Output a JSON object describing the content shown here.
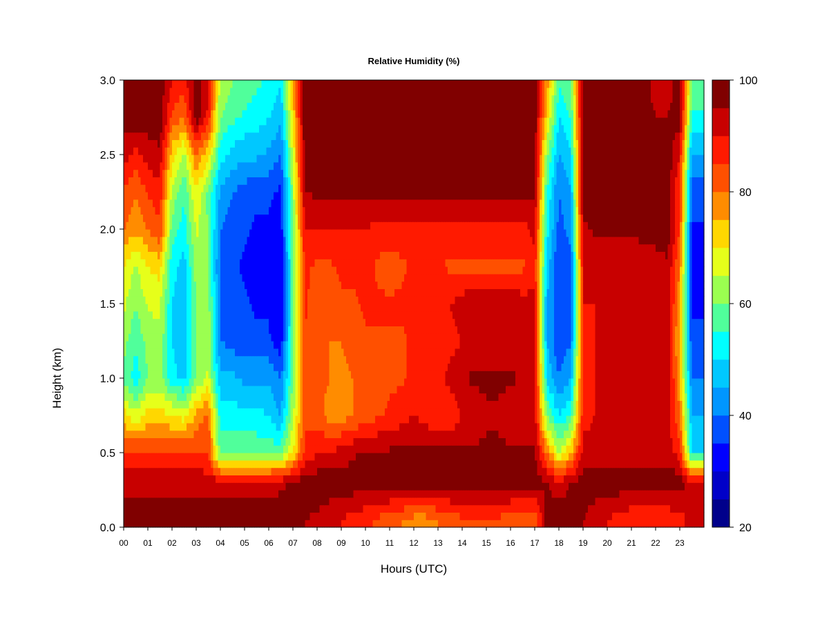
{
  "chart_data": {
    "type": "heatmap",
    "title": "Relative Humidity (%)",
    "xlabel": "Hours (UTC)",
    "ylabel": "Height (km)",
    "xlim": [
      0,
      24
    ],
    "ylim": [
      0,
      3
    ],
    "x_ticks": [
      0,
      1,
      2,
      3,
      4,
      5,
      6,
      7,
      8,
      9,
      10,
      11,
      12,
      13,
      14,
      15,
      16,
      17,
      18,
      19,
      20,
      21,
      22,
      23
    ],
    "x_tick_labels": [
      "00",
      "01",
      "02",
      "03",
      "04",
      "05",
      "06",
      "07",
      "08",
      "09",
      "10",
      "11",
      "12",
      "13",
      "14",
      "15",
      "16",
      "17",
      "18",
      "19",
      "20",
      "21",
      "22",
      "23"
    ],
    "y_ticks": [
      0.0,
      0.5,
      1.0,
      1.5,
      2.0,
      2.5,
      3.0
    ],
    "y_tick_labels": [
      "0.0",
      "0.5",
      "1.0",
      "1.5",
      "2.0",
      "2.5",
      "3.0"
    ],
    "colorbar": {
      "min": 20,
      "max": 100,
      "step": 5,
      "tick_values": [
        20,
        40,
        60,
        80,
        100
      ],
      "tick_labels": [
        "20",
        "40",
        "60",
        "80",
        "100"
      ],
      "colors": [
        "#00008b",
        "#0000c8",
        "#0000ff",
        "#0050ff",
        "#0096ff",
        "#00c8ff",
        "#00ffff",
        "#50ff9b",
        "#9bff50",
        "#e6ff1a",
        "#ffd700",
        "#ff8c00",
        "#ff5000",
        "#ff1a00",
        "#c80000",
        "#800000"
      ]
    },
    "heights_km": [
      0.05,
      0.3,
      0.5,
      0.75,
      1.0,
      1.25,
      1.5,
      1.75,
      2.0,
      2.25,
      2.5,
      2.75,
      3.0
    ],
    "hours_utc": [
      0,
      0.5,
      1,
      1.5,
      2,
      2.5,
      3,
      3.5,
      4,
      4.5,
      5,
      5.5,
      6,
      6.5,
      7,
      7.5,
      8,
      8.5,
      9,
      9.5,
      10,
      10.5,
      11,
      11.5,
      12,
      12.5,
      13,
      13.5,
      14,
      14.5,
      15,
      15.5,
      16,
      16.5,
      17,
      17.5,
      18,
      18.5,
      19,
      19.5,
      20,
      20.5,
      21,
      21.5,
      22,
      22.5,
      23,
      23.5,
      24
    ],
    "rh_percent": [
      [
        98,
        98,
        98,
        98,
        98,
        98,
        98,
        98,
        98,
        98,
        98,
        98,
        98,
        98,
        97,
        95,
        94,
        92,
        90,
        88,
        86,
        84,
        82,
        80,
        78,
        78,
        80,
        82,
        84,
        84,
        84,
        84,
        82,
        80,
        80,
        98,
        98,
        98,
        95,
        92,
        90,
        88,
        86,
        86,
        86,
        86,
        88,
        92,
        95
      ],
      [
        93,
        93,
        93,
        93,
        93,
        93,
        93,
        93,
        93,
        93,
        93,
        93,
        93,
        94,
        96,
        98,
        98,
        98,
        98,
        98,
        98,
        98,
        98,
        98,
        98,
        98,
        98,
        98,
        98,
        98,
        98,
        98,
        98,
        98,
        98,
        95,
        92,
        95,
        98,
        98,
        98,
        98,
        98,
        98,
        98,
        98,
        98,
        92,
        90
      ],
      [
        86,
        86,
        86,
        86,
        86,
        86,
        86,
        84,
        58,
        58,
        58,
        58,
        58,
        58,
        70,
        86,
        90,
        90,
        92,
        94,
        96,
        96,
        96,
        96,
        96,
        96,
        96,
        96,
        96,
        96,
        96,
        96,
        96,
        96,
        96,
        80,
        65,
        75,
        92,
        92,
        92,
        92,
        92,
        92,
        92,
        92,
        88,
        50,
        50
      ],
      [
        72,
        66,
        72,
        72,
        70,
        68,
        76,
        82,
        52,
        52,
        52,
        52,
        50,
        45,
        64,
        84,
        82,
        78,
        78,
        80,
        82,
        84,
        86,
        88,
        90,
        88,
        86,
        86,
        90,
        92,
        94,
        94,
        92,
        90,
        92,
        60,
        50,
        55,
        88,
        90,
        90,
        90,
        92,
        92,
        92,
        92,
        80,
        45,
        45
      ],
      [
        58,
        52,
        60,
        62,
        52,
        48,
        60,
        66,
        46,
        46,
        44,
        44,
        44,
        40,
        60,
        84,
        82,
        80,
        78,
        80,
        82,
        84,
        84,
        84,
        86,
        86,
        88,
        92,
        94,
        96,
        96,
        96,
        96,
        94,
        92,
        50,
        40,
        45,
        88,
        90,
        92,
        92,
        94,
        94,
        94,
        94,
        76,
        40,
        40
      ],
      [
        62,
        56,
        62,
        64,
        50,
        46,
        60,
        64,
        40,
        38,
        36,
        36,
        36,
        32,
        58,
        84,
        82,
        80,
        80,
        82,
        84,
        84,
        84,
        84,
        86,
        86,
        86,
        88,
        90,
        92,
        92,
        92,
        92,
        92,
        92,
        45,
        35,
        40,
        88,
        90,
        90,
        90,
        92,
        92,
        92,
        92,
        74,
        36,
        36
      ],
      [
        66,
        60,
        66,
        66,
        50,
        46,
        60,
        62,
        40,
        38,
        36,
        34,
        34,
        30,
        58,
        86,
        82,
        82,
        84,
        84,
        86,
        86,
        86,
        86,
        88,
        88,
        88,
        90,
        92,
        94,
        94,
        94,
        94,
        92,
        92,
        45,
        35,
        38,
        90,
        90,
        90,
        92,
        92,
        92,
        94,
        94,
        76,
        34,
        34
      ],
      [
        70,
        64,
        70,
        72,
        52,
        48,
        62,
        60,
        38,
        36,
        34,
        32,
        32,
        30,
        58,
        86,
        84,
        84,
        86,
        86,
        88,
        84,
        82,
        84,
        86,
        86,
        86,
        84,
        84,
        84,
        84,
        84,
        84,
        84,
        88,
        48,
        35,
        38,
        90,
        90,
        90,
        90,
        90,
        90,
        92,
        94,
        80,
        32,
        32
      ],
      [
        80,
        76,
        80,
        84,
        58,
        52,
        66,
        60,
        40,
        38,
        36,
        34,
        34,
        32,
        60,
        90,
        90,
        90,
        90,
        90,
        90,
        88,
        88,
        88,
        88,
        88,
        88,
        88,
        88,
        88,
        88,
        88,
        88,
        88,
        92,
        52,
        38,
        42,
        94,
        96,
        96,
        96,
        96,
        98,
        98,
        98,
        85,
        34,
        34
      ],
      [
        84,
        80,
        86,
        88,
        64,
        56,
        70,
        58,
        44,
        40,
        38,
        36,
        36,
        34,
        62,
        95,
        96,
        96,
        96,
        96,
        96,
        96,
        96,
        96,
        96,
        96,
        96,
        96,
        96,
        96,
        96,
        96,
        96,
        96,
        96,
        55,
        40,
        45,
        98,
        98,
        98,
        98,
        98,
        98,
        98,
        98,
        85,
        38,
        38
      ],
      [
        92,
        88,
        92,
        94,
        72,
        64,
        80,
        72,
        52,
        48,
        46,
        46,
        44,
        40,
        66,
        98,
        98,
        98,
        98,
        98,
        98,
        98,
        98,
        98,
        98,
        98,
        98,
        98,
        98,
        98,
        98,
        98,
        98,
        98,
        98,
        62,
        44,
        50,
        98,
        98,
        98,
        98,
        98,
        98,
        98,
        98,
        90,
        44,
        44
      ],
      [
        98,
        98,
        98,
        98,
        84,
        80,
        98,
        88,
        60,
        56,
        54,
        52,
        50,
        46,
        72,
        98,
        98,
        98,
        98,
        98,
        98,
        98,
        98,
        98,
        98,
        98,
        98,
        98,
        98,
        98,
        98,
        98,
        98,
        98,
        98,
        72,
        50,
        55,
        98,
        98,
        98,
        98,
        98,
        98,
        95,
        95,
        98,
        54,
        54
      ],
      [
        98,
        98,
        98,
        98,
        90,
        88,
        98,
        92,
        64,
        60,
        58,
        56,
        54,
        50,
        76,
        98,
        98,
        98,
        98,
        98,
        98,
        98,
        98,
        98,
        98,
        98,
        98,
        98,
        98,
        98,
        98,
        98,
        98,
        98,
        98,
        78,
        56,
        60,
        98,
        98,
        98,
        98,
        98,
        98,
        92,
        92,
        98,
        60,
        60
      ]
    ]
  }
}
